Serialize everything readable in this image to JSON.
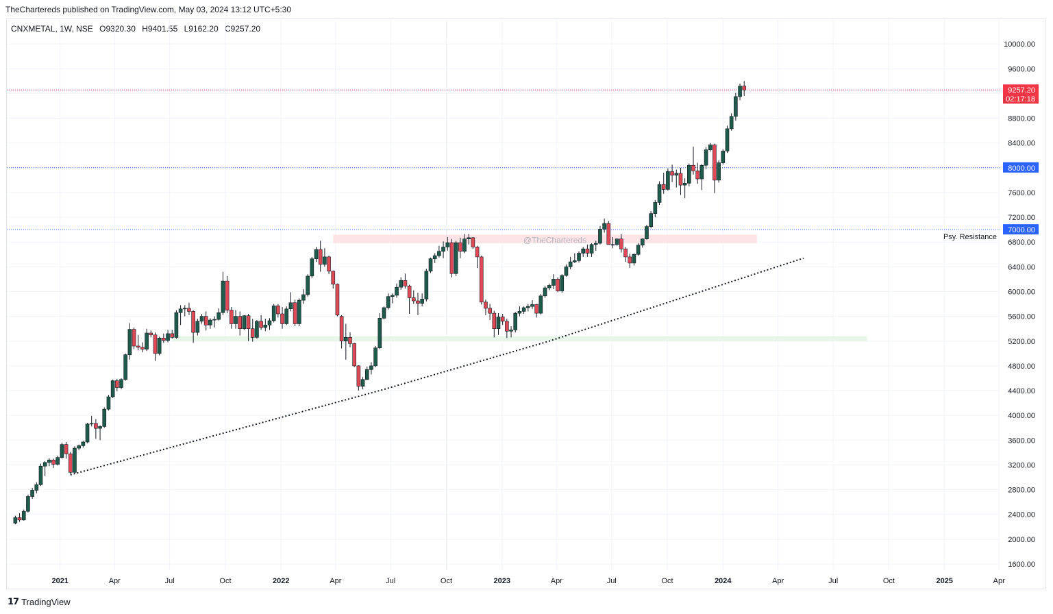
{
  "header": {
    "published": "TheChartereds published on TradingView.com, May 03, 2024 13:12 UTC+5:30"
  },
  "legend": {
    "symbol": "CNXMETAL, 1W, NSE",
    "open": "O9320.30",
    "high": "H9401.55",
    "low": "L9162.20",
    "close": "C9257.20"
  },
  "footer": {
    "brand": "TradingView"
  },
  "colors": {
    "up": "#1e5b4b",
    "down": "#e04a57",
    "dotted_price": "#f23645",
    "level_blue": "#2962ff"
  },
  "chart_data": {
    "type": "candlestick",
    "timeframe": "1W",
    "y_axis": {
      "ticks": [
        10000,
        9600,
        9200,
        8800,
        8400,
        8000,
        7600,
        7200,
        6800,
        6400,
        6000,
        5600,
        5200,
        4800,
        4400,
        4000,
        3600,
        3200,
        2800,
        2400,
        2000,
        1600
      ],
      "tick_labels": [
        "10000.00",
        "9600.00",
        "9200.00",
        "8800.00",
        "8400.00",
        "8000.00",
        "7600.00",
        "7200.00",
        "6800.00",
        "6400.00",
        "6000.00",
        "5600.00",
        "5200.00",
        "4800.00",
        "4400.00",
        "4000.00",
        "3600.00",
        "3200.00",
        "2800.00",
        "2400.00",
        "2000.00",
        "1600.00"
      ],
      "range": [
        1500,
        10400
      ]
    },
    "x_axis": {
      "ticks": [
        "2021-01-01",
        "2021-04-01",
        "2021-07-01",
        "2021-10-01",
        "2022-01-01",
        "2022-04-01",
        "2022-07-01",
        "2022-10-01",
        "2023-01-01",
        "2023-04-01",
        "2023-07-01",
        "2023-10-01",
        "2024-01-01",
        "2024-04-01",
        "2024-07-01",
        "2024-10-01",
        "2025-01-01",
        "2025-04-01"
      ],
      "tick_labels": [
        "2021",
        "Apr",
        "Jul",
        "Oct",
        "2022",
        "Apr",
        "Jul",
        "Oct",
        "2023",
        "Apr",
        "Jul",
        "Oct",
        "2024",
        "Apr",
        "Jul",
        "Oct",
        "2025",
        "Apr"
      ],
      "bold_labels": [
        "2021",
        "2022",
        "2023",
        "2024",
        "2025"
      ],
      "range": [
        "2020-10-05",
        "2025-04-03"
      ]
    },
    "price_labels": [
      {
        "value": 9257.2,
        "text": "9257.20",
        "subtext": "02:17:18",
        "color": "#f23645",
        "line": "red-dotted"
      },
      {
        "value": 8000,
        "text": "8000.00",
        "color": "#2962ff",
        "line": "blue-dotted"
      },
      {
        "value": 7000,
        "text": "7000.00",
        "color": "#2962ff",
        "line": "blue-dotted"
      }
    ],
    "annotations": [
      {
        "text": "Psy. Resistance",
        "value": 7000
      },
      {
        "text": "@TheChartereds",
        "type": "watermark"
      }
    ],
    "zones": [
      {
        "name": "resistance-zone",
        "x1": "2022-03-28",
        "x2": "2024-02-26",
        "y_low": 6780,
        "y_high": 6920,
        "color": "#fde4e6"
      },
      {
        "name": "support-zone",
        "x1": "2021-07-05",
        "x2": "2024-08-26",
        "y_low": 5200,
        "y_high": 5280,
        "color": "#e8f5e9"
      }
    ],
    "trendlines": [
      {
        "style": "dotted",
        "points": [
          [
            "2021-01-18",
            3040
          ],
          [
            "2022-06-20",
            4420
          ],
          [
            "2023-03-20",
            5200
          ],
          [
            "2024-05-13",
            6540
          ]
        ]
      }
    ],
    "start_week": "2020-10-19",
    "candles": [
      [
        2260,
        2380,
        2240,
        2350
      ],
      [
        2350,
        2420,
        2280,
        2310
      ],
      [
        2310,
        2480,
        2300,
        2450
      ],
      [
        2450,
        2720,
        2430,
        2690
      ],
      [
        2690,
        2830,
        2650,
        2790
      ],
      [
        2790,
        2920,
        2740,
        2880
      ],
      [
        2880,
        3220,
        2860,
        3180
      ],
      [
        3180,
        3260,
        3020,
        3240
      ],
      [
        3240,
        3310,
        3180,
        3280
      ],
      [
        3280,
        3300,
        3150,
        3210
      ],
      [
        3210,
        3350,
        3190,
        3320
      ],
      [
        3320,
        3560,
        3300,
        3530
      ],
      [
        3530,
        3570,
        3300,
        3380
      ],
      [
        3380,
        3410,
        3050,
        3080
      ],
      [
        3080,
        3500,
        3060,
        3470
      ],
      [
        3470,
        3530,
        3440,
        3510
      ],
      [
        3510,
        3590,
        3480,
        3570
      ],
      [
        3570,
        3880,
        3550,
        3860
      ],
      [
        3860,
        3990,
        3820,
        3870
      ],
      [
        3870,
        3940,
        3620,
        3790
      ],
      [
        3790,
        3840,
        3600,
        3820
      ],
      [
        3820,
        4130,
        3800,
        4100
      ],
      [
        4100,
        4330,
        4080,
        4300
      ],
      [
        4300,
        4580,
        4280,
        4560
      ],
      [
        4560,
        4590,
        4390,
        4450
      ],
      [
        4450,
        4600,
        4420,
        4580
      ],
      [
        4580,
        5000,
        4560,
        4980
      ],
      [
        4980,
        5490,
        4900,
        5390
      ],
      [
        5390,
        5420,
        5070,
        5120
      ],
      [
        5120,
        5300,
        5050,
        5100
      ],
      [
        5100,
        5180,
        5020,
        5070
      ],
      [
        5070,
        5400,
        5040,
        5330
      ],
      [
        5330,
        5370,
        5260,
        5300
      ],
      [
        5300,
        5340,
        4880,
        5000
      ],
      [
        5000,
        5270,
        4970,
        5250
      ],
      [
        5250,
        5320,
        5170,
        5210
      ],
      [
        5210,
        5380,
        5180,
        5320
      ],
      [
        5320,
        5380,
        5240,
        5260
      ],
      [
        5260,
        5700,
        5240,
        5660
      ],
      [
        5660,
        5780,
        5460,
        5720
      ],
      [
        5720,
        5780,
        5600,
        5730
      ],
      [
        5730,
        5820,
        5620,
        5680
      ],
      [
        5680,
        5700,
        5170,
        5340
      ],
      [
        5340,
        5560,
        5290,
        5520
      ],
      [
        5520,
        5640,
        5480,
        5600
      ],
      [
        5600,
        5680,
        5370,
        5460
      ],
      [
        5460,
        5570,
        5400,
        5540
      ],
      [
        5540,
        5600,
        5420,
        5550
      ],
      [
        5550,
        5730,
        5530,
        5660
      ],
      [
        5660,
        6320,
        5620,
        6170
      ],
      [
        6170,
        6250,
        5650,
        5700
      ],
      [
        5700,
        5750,
        5400,
        5480
      ],
      [
        5480,
        5700,
        5400,
        5600
      ],
      [
        5600,
        5680,
        5290,
        5400
      ],
      [
        5400,
        5620,
        5380,
        5610
      ],
      [
        5610,
        5640,
        5200,
        5400
      ],
      [
        5400,
        5560,
        5190,
        5260
      ],
      [
        5260,
        5540,
        5240,
        5520
      ],
      [
        5520,
        5620,
        5380,
        5420
      ],
      [
        5420,
        5560,
        5360,
        5460
      ],
      [
        5460,
        5570,
        5380,
        5530
      ],
      [
        5530,
        5800,
        5500,
        5770
      ],
      [
        5770,
        5800,
        5580,
        5640
      ],
      [
        5640,
        5750,
        5400,
        5480
      ],
      [
        5480,
        5760,
        5460,
        5720
      ],
      [
        5720,
        5990,
        5680,
        5820
      ],
      [
        5820,
        5870,
        5440,
        5480
      ],
      [
        5480,
        5890,
        5440,
        5860
      ],
      [
        5860,
        6040,
        5800,
        5950
      ],
      [
        5950,
        6280,
        5920,
        6250
      ],
      [
        6250,
        6560,
        6220,
        6530
      ],
      [
        6530,
        6720,
        6480,
        6680
      ],
      [
        6680,
        6820,
        6320,
        6440
      ],
      [
        6440,
        6700,
        6400,
        6560
      ],
      [
        6560,
        6580,
        6280,
        6330
      ],
      [
        6330,
        6340,
        6050,
        6120
      ],
      [
        6120,
        6130,
        5600,
        5620
      ],
      [
        5600,
        5620,
        5080,
        5200
      ],
      [
        5200,
        5480,
        4900,
        5260
      ],
      [
        5260,
        5340,
        5100,
        5160
      ],
      [
        5160,
        5170,
        4780,
        4800
      ],
      [
        4800,
        4810,
        4400,
        4470
      ],
      [
        4470,
        4620,
        4420,
        4580
      ],
      [
        4580,
        4790,
        4570,
        4740
      ],
      [
        4740,
        4860,
        4660,
        4800
      ],
      [
        4800,
        5120,
        4780,
        5090
      ],
      [
        5090,
        5650,
        5070,
        5570
      ],
      [
        5570,
        5760,
        5550,
        5740
      ],
      [
        5740,
        5970,
        5710,
        5920
      ],
      [
        5920,
        5970,
        5810,
        5940
      ],
      [
        5940,
        6130,
        5900,
        6070
      ],
      [
        6070,
        6230,
        6030,
        6180
      ],
      [
        6180,
        6290,
        6050,
        6090
      ],
      [
        6090,
        6110,
        5640,
        5900
      ],
      [
        5900,
        6020,
        5800,
        5850
      ],
      [
        5850,
        5980,
        5620,
        5810
      ],
      [
        5810,
        5970,
        5760,
        5880
      ],
      [
        5880,
        6370,
        5840,
        6330
      ],
      [
        6330,
        6550,
        6300,
        6530
      ],
      [
        6530,
        6620,
        6460,
        6580
      ],
      [
        6580,
        6740,
        6550,
        6650
      ],
      [
        6650,
        6810,
        6540,
        6720
      ],
      [
        6720,
        6880,
        6660,
        6790
      ],
      [
        6790,
        6850,
        6230,
        6290
      ],
      [
        6290,
        6820,
        6250,
        6790
      ],
      [
        6790,
        6870,
        6540,
        6650
      ],
      [
        6650,
        6930,
        6620,
        6850
      ],
      [
        6850,
        6930,
        6760,
        6870
      ],
      [
        6870,
        6880,
        6690,
        6720
      ],
      [
        6720,
        6740,
        6380,
        6560
      ],
      [
        6560,
        6580,
        5790,
        5830
      ],
      [
        5830,
        5870,
        5620,
        5730
      ],
      [
        5730,
        5800,
        5540,
        5650
      ],
      [
        5650,
        5690,
        5260,
        5400
      ],
      [
        5400,
        5650,
        5300,
        5590
      ],
      [
        5590,
        5640,
        5460,
        5520
      ],
      [
        5520,
        5560,
        5250,
        5360
      ],
      [
        5360,
        5440,
        5260,
        5380
      ],
      [
        5380,
        5670,
        5340,
        5650
      ],
      [
        5650,
        5760,
        5600,
        5680
      ],
      [
        5680,
        5760,
        5640,
        5740
      ],
      [
        5740,
        5800,
        5680,
        5760
      ],
      [
        5760,
        5860,
        5720,
        5790
      ],
      [
        5790,
        5800,
        5580,
        5650
      ],
      [
        5650,
        5960,
        5630,
        5930
      ],
      [
        5930,
        6090,
        5900,
        6060
      ],
      [
        6060,
        6130,
        6020,
        6100
      ],
      [
        6100,
        6280,
        6040,
        6200
      ],
      [
        6200,
        6230,
        5990,
        6010
      ],
      [
        6010,
        6280,
        5980,
        6260
      ],
      [
        6260,
        6440,
        6240,
        6400
      ],
      [
        6400,
        6560,
        6360,
        6480
      ],
      [
        6480,
        6620,
        6460,
        6500
      ],
      [
        6500,
        6650,
        6470,
        6620
      ],
      [
        6620,
        6720,
        6560,
        6690
      ],
      [
        6690,
        6760,
        6560,
        6620
      ],
      [
        6620,
        6780,
        6560,
        6760
      ],
      [
        6760,
        6820,
        6660,
        6780
      ],
      [
        6780,
        7060,
        6760,
        7010
      ],
      [
        7010,
        7180,
        6950,
        7100
      ],
      [
        7100,
        7140,
        6760,
        6760
      ],
      [
        6760,
        6880,
        6700,
        6760
      ],
      [
        6760,
        6860,
        6740,
        6850
      ],
      [
        6850,
        6930,
        6630,
        6690
      ],
      [
        6690,
        6720,
        6480,
        6560
      ],
      [
        6560,
        6610,
        6380,
        6460
      ],
      [
        6460,
        6620,
        6420,
        6600
      ],
      [
        6600,
        6780,
        6580,
        6750
      ],
      [
        6750,
        6860,
        6710,
        6850
      ],
      [
        6850,
        7080,
        6840,
        7050
      ],
      [
        7050,
        7300,
        7020,
        7260
      ],
      [
        7260,
        7480,
        7200,
        7440
      ],
      [
        7440,
        7780,
        7400,
        7730
      ],
      [
        7730,
        7920,
        7580,
        7650
      ],
      [
        7650,
        7990,
        7630,
        7940
      ],
      [
        7940,
        8050,
        7770,
        7880
      ],
      [
        7880,
        7970,
        7680,
        7910
      ],
      [
        7910,
        8000,
        7560,
        7720
      ],
      [
        7720,
        7830,
        7510,
        7750
      ],
      [
        7750,
        8070,
        7700,
        8040
      ],
      [
        8040,
        8340,
        7890,
        7950
      ],
      [
        7950,
        8080,
        7740,
        7820
      ],
      [
        7820,
        8060,
        7640,
        8040
      ],
      [
        8040,
        8330,
        7980,
        8290
      ],
      [
        8290,
        8400,
        8260,
        8370
      ],
      [
        8370,
        8390,
        7590,
        7800
      ],
      [
        7800,
        8120,
        7760,
        8080
      ],
      [
        8080,
        8300,
        8050,
        8270
      ],
      [
        8270,
        8680,
        8240,
        8630
      ],
      [
        8630,
        8880,
        8600,
        8830
      ],
      [
        8830,
        9210,
        8760,
        9150
      ],
      [
        9150,
        9360,
        9090,
        9320
      ],
      [
        9320,
        9401.55,
        9162.2,
        9257.2
      ]
    ]
  }
}
